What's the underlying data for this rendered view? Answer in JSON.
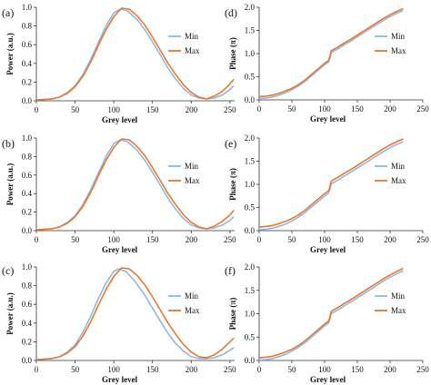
{
  "colors": {
    "min": "#8fb8e2",
    "max": "#e9772d",
    "axis": "#333333"
  },
  "chart_data": [
    {
      "type": "line",
      "panel": "(a)",
      "xlabel": "Grey level",
      "ylabel": "Power (a.u.)",
      "xlim": [
        0,
        256
      ],
      "ylim": [
        0,
        1.0
      ],
      "xticks": [
        "0",
        "50",
        "100",
        "150",
        "200",
        "250"
      ],
      "yticks": [
        "0.0",
        "0.2",
        "0.4",
        "0.6",
        "0.8",
        "1.0"
      ],
      "legend": "right",
      "series": [
        {
          "name": "Min",
          "color": "#8fb8e2",
          "x": [
            0,
            10,
            20,
            30,
            40,
            50,
            60,
            70,
            80,
            90,
            100,
            108,
            118,
            130,
            140,
            150,
            160,
            170,
            180,
            190,
            200,
            210,
            220,
            230,
            240,
            250,
            255
          ],
          "y": [
            0.01,
            0.015,
            0.02,
            0.04,
            0.09,
            0.16,
            0.28,
            0.44,
            0.62,
            0.8,
            0.94,
            0.98,
            0.96,
            0.87,
            0.76,
            0.63,
            0.49,
            0.35,
            0.23,
            0.13,
            0.06,
            0.03,
            0.02,
            0.03,
            0.06,
            0.12,
            0.16
          ]
        },
        {
          "name": "Max",
          "color": "#e9772d",
          "x": [
            0,
            10,
            20,
            30,
            40,
            50,
            60,
            70,
            80,
            90,
            100,
            110,
            120,
            130,
            140,
            150,
            160,
            170,
            180,
            190,
            200,
            210,
            220,
            230,
            240,
            250,
            255
          ],
          "y": [
            0.01,
            0.015,
            0.02,
            0.04,
            0.08,
            0.15,
            0.26,
            0.41,
            0.59,
            0.76,
            0.9,
            0.99,
            0.98,
            0.91,
            0.81,
            0.68,
            0.54,
            0.4,
            0.28,
            0.17,
            0.09,
            0.04,
            0.02,
            0.05,
            0.1,
            0.18,
            0.23
          ]
        }
      ]
    },
    {
      "type": "line",
      "panel": "(d)",
      "xlabel": "Grey level",
      "ylabel": "Phase (π)",
      "xlim": [
        0,
        250
      ],
      "ylim": [
        0,
        2.0
      ],
      "xticks": [
        "0",
        "50",
        "100",
        "150",
        "200",
        "250"
      ],
      "yticks": [
        "0.0",
        "0.5",
        "1.0",
        "1.5",
        "2.0"
      ],
      "legend": "right",
      "series": [
        {
          "name": "Min",
          "color": "#8fb8e2",
          "x": [
            0,
            10,
            20,
            30,
            40,
            50,
            60,
            70,
            80,
            90,
            100,
            106,
            108,
            110,
            120,
            130,
            140,
            150,
            160,
            170,
            180,
            190,
            200,
            210,
            220
          ],
          "y": [
            0.03,
            0.04,
            0.06,
            0.1,
            0.15,
            0.22,
            0.3,
            0.4,
            0.52,
            0.64,
            0.76,
            0.82,
            0.9,
            1.02,
            1.1,
            1.19,
            1.27,
            1.36,
            1.45,
            1.54,
            1.63,
            1.72,
            1.8,
            1.87,
            1.93
          ]
        },
        {
          "name": "Max",
          "color": "#e9772d",
          "x": [
            0,
            10,
            20,
            30,
            40,
            50,
            60,
            70,
            80,
            90,
            100,
            106,
            108,
            110,
            120,
            130,
            140,
            150,
            160,
            170,
            180,
            190,
            200,
            210,
            220
          ],
          "y": [
            0.07,
            0.08,
            0.1,
            0.14,
            0.19,
            0.25,
            0.33,
            0.43,
            0.55,
            0.67,
            0.79,
            0.85,
            0.94,
            1.06,
            1.14,
            1.23,
            1.31,
            1.4,
            1.49,
            1.58,
            1.67,
            1.76,
            1.84,
            1.91,
            1.97
          ]
        }
      ]
    },
    {
      "type": "line",
      "panel": "(b)",
      "xlabel": "Grey level",
      "ylabel": "Power (a.u.)",
      "xlim": [
        0,
        256
      ],
      "ylim": [
        0,
        1.0
      ],
      "xticks": [
        "0",
        "50",
        "100",
        "150",
        "200",
        "250"
      ],
      "yticks": [
        "0.0",
        "0.2",
        "0.4",
        "0.6",
        "0.8",
        "1.0"
      ],
      "legend": "right",
      "series": [
        {
          "name": "Min",
          "color": "#8fb8e2",
          "x": [
            0,
            10,
            20,
            30,
            40,
            50,
            60,
            70,
            80,
            90,
            100,
            108,
            118,
            130,
            140,
            150,
            160,
            170,
            180,
            190,
            200,
            210,
            220,
            230,
            240,
            250,
            255
          ],
          "y": [
            0.01,
            0.015,
            0.02,
            0.04,
            0.09,
            0.16,
            0.28,
            0.44,
            0.62,
            0.8,
            0.94,
            0.98,
            0.96,
            0.87,
            0.76,
            0.63,
            0.49,
            0.35,
            0.23,
            0.13,
            0.06,
            0.03,
            0.02,
            0.03,
            0.06,
            0.11,
            0.15
          ]
        },
        {
          "name": "Max",
          "color": "#e9772d",
          "x": [
            0,
            10,
            20,
            30,
            40,
            50,
            60,
            70,
            80,
            90,
            100,
            110,
            120,
            130,
            140,
            150,
            160,
            170,
            180,
            190,
            200,
            210,
            220,
            230,
            240,
            250,
            255
          ],
          "y": [
            0.01,
            0.015,
            0.02,
            0.04,
            0.08,
            0.15,
            0.26,
            0.41,
            0.59,
            0.76,
            0.9,
            0.99,
            0.98,
            0.91,
            0.81,
            0.68,
            0.54,
            0.4,
            0.28,
            0.17,
            0.09,
            0.04,
            0.02,
            0.05,
            0.1,
            0.17,
            0.22
          ]
        }
      ]
    },
    {
      "type": "line",
      "panel": "(e)",
      "xlabel": "Grey level",
      "ylabel": "Phase (π)",
      "xlim": [
        0,
        250
      ],
      "ylim": [
        0,
        2.0
      ],
      "xticks": [
        "0",
        "50",
        "100",
        "150",
        "200",
        "250"
      ],
      "yticks": [
        "0.0",
        "0.5",
        "1.0",
        "1.5",
        "2.0"
      ],
      "legend": "right",
      "series": [
        {
          "name": "Min",
          "color": "#8fb8e2",
          "x": [
            0,
            10,
            20,
            30,
            40,
            50,
            60,
            70,
            80,
            90,
            100,
            106,
            108,
            110,
            120,
            130,
            140,
            150,
            160,
            170,
            180,
            190,
            200,
            210,
            220
          ],
          "y": [
            0.02,
            0.03,
            0.05,
            0.09,
            0.14,
            0.21,
            0.29,
            0.39,
            0.51,
            0.63,
            0.75,
            0.81,
            0.89,
            1.01,
            1.09,
            1.18,
            1.26,
            1.35,
            1.44,
            1.53,
            1.62,
            1.71,
            1.79,
            1.86,
            1.92
          ]
        },
        {
          "name": "Max",
          "color": "#e9772d",
          "x": [
            0,
            10,
            20,
            30,
            40,
            50,
            60,
            70,
            80,
            90,
            100,
            106,
            108,
            110,
            120,
            130,
            140,
            150,
            160,
            170,
            180,
            190,
            200,
            210,
            220
          ],
          "y": [
            0.08,
            0.09,
            0.11,
            0.15,
            0.2,
            0.26,
            0.34,
            0.44,
            0.56,
            0.68,
            0.8,
            0.86,
            0.95,
            1.07,
            1.15,
            1.24,
            1.32,
            1.41,
            1.5,
            1.59,
            1.68,
            1.77,
            1.85,
            1.92,
            1.98
          ]
        }
      ]
    },
    {
      "type": "line",
      "panel": "(c)",
      "xlabel": "Grey level",
      "ylabel": "Power (a.u.)",
      "xlim": [
        0,
        256
      ],
      "ylim": [
        0,
        1.0
      ],
      "xticks": [
        "0",
        "50",
        "100",
        "150",
        "200",
        "250"
      ],
      "yticks": [
        "0.0",
        "0.2",
        "0.4",
        "0.6",
        "0.8",
        "1.0"
      ],
      "legend": "right",
      "series": [
        {
          "name": "Min",
          "color": "#8fb8e2",
          "x": [
            0,
            10,
            20,
            30,
            40,
            50,
            60,
            70,
            80,
            90,
            100,
            106,
            116,
            128,
            140,
            150,
            160,
            170,
            180,
            190,
            200,
            210,
            220,
            230,
            240,
            250,
            255
          ],
          "y": [
            0.01,
            0.015,
            0.02,
            0.04,
            0.09,
            0.17,
            0.3,
            0.47,
            0.66,
            0.83,
            0.95,
            0.98,
            0.95,
            0.84,
            0.7,
            0.56,
            0.42,
            0.29,
            0.18,
            0.1,
            0.04,
            0.02,
            0.02,
            0.03,
            0.06,
            0.11,
            0.14
          ]
        },
        {
          "name": "Max",
          "color": "#e9772d",
          "x": [
            0,
            10,
            20,
            30,
            40,
            50,
            60,
            70,
            80,
            90,
            100,
            110,
            120,
            130,
            140,
            150,
            160,
            170,
            180,
            190,
            200,
            210,
            220,
            230,
            240,
            250,
            255
          ],
          "y": [
            0.01,
            0.015,
            0.02,
            0.04,
            0.08,
            0.15,
            0.26,
            0.41,
            0.59,
            0.76,
            0.9,
            0.99,
            0.98,
            0.91,
            0.81,
            0.68,
            0.54,
            0.4,
            0.28,
            0.17,
            0.09,
            0.04,
            0.03,
            0.06,
            0.12,
            0.2,
            0.24
          ]
        }
      ]
    },
    {
      "type": "line",
      "panel": "(f)",
      "xlabel": "Grey level",
      "ylabel": "Phase (π)",
      "xlim": [
        0,
        250
      ],
      "ylim": [
        0,
        2.0
      ],
      "xticks": [
        "0",
        "50",
        "100",
        "150",
        "200",
        "250"
      ],
      "yticks": [
        "0.0",
        "0.5",
        "1.0",
        "1.5",
        "2.0"
      ],
      "legend": "right",
      "series": [
        {
          "name": "Min",
          "color": "#8fb8e2",
          "x": [
            0,
            10,
            20,
            30,
            40,
            50,
            60,
            70,
            80,
            90,
            100,
            106,
            108,
            110,
            120,
            130,
            140,
            150,
            160,
            170,
            180,
            190,
            200,
            210,
            220
          ],
          "y": [
            0.01,
            0.02,
            0.04,
            0.08,
            0.13,
            0.2,
            0.28,
            0.38,
            0.5,
            0.62,
            0.74,
            0.8,
            0.88,
            1.0,
            1.08,
            1.17,
            1.25,
            1.34,
            1.43,
            1.52,
            1.61,
            1.7,
            1.78,
            1.85,
            1.92
          ]
        },
        {
          "name": "Max",
          "color": "#e9772d",
          "x": [
            0,
            10,
            20,
            30,
            40,
            50,
            60,
            70,
            80,
            90,
            100,
            106,
            108,
            110,
            120,
            130,
            140,
            150,
            160,
            170,
            180,
            190,
            200,
            210,
            220
          ],
          "y": [
            0.06,
            0.07,
            0.09,
            0.13,
            0.18,
            0.24,
            0.32,
            0.42,
            0.54,
            0.66,
            0.78,
            0.84,
            0.93,
            1.05,
            1.13,
            1.22,
            1.3,
            1.39,
            1.48,
            1.57,
            1.66,
            1.75,
            1.83,
            1.9,
            1.97
          ]
        }
      ]
    }
  ]
}
